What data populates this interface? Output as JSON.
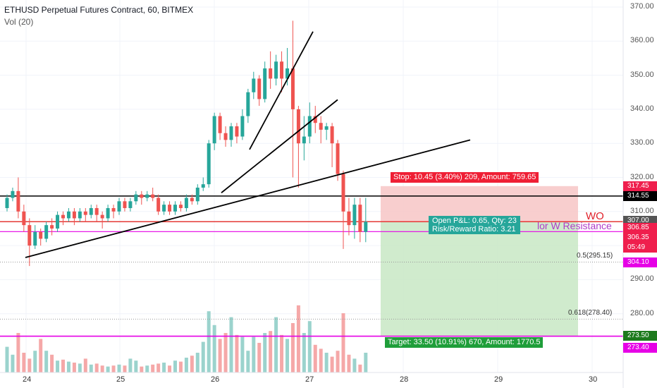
{
  "header": {
    "title": "ETHUSD Perpetual Futures Contract, 60, BITMEX",
    "indicator": "Vol (20)"
  },
  "price_axis": {
    "ticks": [
      "370.00",
      "360.00",
      "350.00",
      "340.00",
      "330.00",
      "320.00",
      "310.00",
      "300.00",
      "290.00",
      "280.00"
    ]
  },
  "time_axis": {
    "ticks": [
      "24",
      "25",
      "26",
      "27",
      "28",
      "29",
      "30"
    ]
  },
  "tags": [
    {
      "text": "317.45",
      "color": "#ef1f4d"
    },
    {
      "text": "314.55",
      "color": "#000000"
    },
    {
      "text": "307.00",
      "color": "#555555"
    },
    {
      "text": "306.85",
      "color": "#ef1f4d"
    },
    {
      "text": "306.35",
      "color": "#ef1f4d"
    },
    {
      "text": "05:49",
      "color": "#ef1f4d"
    },
    {
      "text": "304.10",
      "color": "#e600e6"
    },
    {
      "text": "273.50",
      "color": "#1d7a1d"
    },
    {
      "text": "273.40",
      "color": "#e600e6"
    }
  ],
  "position": {
    "stop": "Stop: 10.45 (3.40%) 209, Amount: 759.65",
    "pnl": "Open P&L: 0.65, Qty: 23",
    "rr": "Risk/Reward Ratio: 3.21",
    "target": "Target: 33.50 (10.91%) 670, Amount: 1770.5"
  },
  "annotations": {
    "wo": "WO",
    "resistance": "lor W Resistance",
    "fib05": "0.5(295.15)",
    "fib0618": "0.618(278.40)"
  },
  "chart_data": {
    "type": "candlestick",
    "symbol": "ETHUSD",
    "interval": "60",
    "x_ticks": [
      "24",
      "25",
      "26",
      "27",
      "28",
      "29",
      "30"
    ],
    "y_ticks": [
      370,
      360,
      350,
      340,
      330,
      320,
      310,
      300,
      290,
      280
    ],
    "ylim": [
      264.5,
      372.5
    ],
    "levels": {
      "horizontal_black": 314.55,
      "red_line": 307.0,
      "magenta_line": 304.1,
      "magenta_low": 273.4,
      "fib_0.5": 295.15,
      "fib_0.618": 278.4
    },
    "candles": [
      {
        "o": 311,
        "c": 314,
        "h": 315,
        "l": 310
      },
      {
        "o": 314,
        "c": 316,
        "h": 317,
        "l": 313
      },
      {
        "o": 316,
        "c": 310,
        "h": 320,
        "l": 308
      },
      {
        "o": 310,
        "c": 306,
        "h": 312,
        "l": 304
      },
      {
        "o": 306,
        "c": 300,
        "h": 308,
        "l": 294
      },
      {
        "o": 300,
        "c": 304,
        "h": 306,
        "l": 299
      },
      {
        "o": 304,
        "c": 302,
        "h": 305,
        "l": 300
      },
      {
        "o": 302,
        "c": 306,
        "h": 307,
        "l": 301
      },
      {
        "o": 306,
        "c": 305,
        "h": 308,
        "l": 303
      },
      {
        "o": 305,
        "c": 309,
        "h": 310,
        "l": 304
      },
      {
        "o": 309,
        "c": 308,
        "h": 310,
        "l": 306
      },
      {
        "o": 308,
        "c": 310,
        "h": 311,
        "l": 307
      },
      {
        "o": 310,
        "c": 308,
        "h": 311,
        "l": 306
      },
      {
        "o": 308,
        "c": 310,
        "h": 311,
        "l": 307
      },
      {
        "o": 310,
        "c": 309,
        "h": 311,
        "l": 307
      },
      {
        "o": 309,
        "c": 311,
        "h": 312,
        "l": 308
      },
      {
        "o": 311,
        "c": 309,
        "h": 312,
        "l": 307
      },
      {
        "o": 309,
        "c": 308,
        "h": 310,
        "l": 305
      },
      {
        "o": 308,
        "c": 311,
        "h": 312,
        "l": 307
      },
      {
        "o": 311,
        "c": 310,
        "h": 312,
        "l": 308
      },
      {
        "o": 310,
        "c": 313,
        "h": 314,
        "l": 309
      },
      {
        "o": 313,
        "c": 311,
        "h": 314,
        "l": 310
      },
      {
        "o": 311,
        "c": 313,
        "h": 314,
        "l": 310
      },
      {
        "o": 313,
        "c": 315,
        "h": 316,
        "l": 312
      },
      {
        "o": 315,
        "c": 314,
        "h": 316,
        "l": 312
      },
      {
        "o": 314,
        "c": 315,
        "h": 316,
        "l": 313
      },
      {
        "o": 315,
        "c": 314,
        "h": 317,
        "l": 313
      },
      {
        "o": 314,
        "c": 310,
        "h": 315,
        "l": 309
      },
      {
        "o": 310,
        "c": 312,
        "h": 313,
        "l": 309
      },
      {
        "o": 312,
        "c": 310,
        "h": 313,
        "l": 309
      },
      {
        "o": 310,
        "c": 312,
        "h": 313,
        "l": 309
      },
      {
        "o": 312,
        "c": 311,
        "h": 313,
        "l": 310
      },
      {
        "o": 311,
        "c": 314,
        "h": 315,
        "l": 310
      },
      {
        "o": 314,
        "c": 313,
        "h": 315,
        "l": 312
      },
      {
        "o": 313,
        "c": 317,
        "h": 318,
        "l": 312
      },
      {
        "o": 317,
        "c": 318,
        "h": 320,
        "l": 316
      },
      {
        "o": 318,
        "c": 330,
        "h": 331,
        "l": 317
      },
      {
        "o": 330,
        "c": 338,
        "h": 339,
        "l": 328
      },
      {
        "o": 338,
        "c": 333,
        "h": 339,
        "l": 331
      },
      {
        "o": 333,
        "c": 331,
        "h": 335,
        "l": 329
      },
      {
        "o": 331,
        "c": 335,
        "h": 336,
        "l": 329
      },
      {
        "o": 335,
        "c": 332,
        "h": 336,
        "l": 330
      },
      {
        "o": 332,
        "c": 338,
        "h": 340,
        "l": 331
      },
      {
        "o": 338,
        "c": 345,
        "h": 346,
        "l": 336
      },
      {
        "o": 345,
        "c": 349,
        "h": 351,
        "l": 343
      },
      {
        "o": 349,
        "c": 343,
        "h": 350,
        "l": 341
      },
      {
        "o": 343,
        "c": 352,
        "h": 354,
        "l": 342
      },
      {
        "o": 352,
        "c": 349,
        "h": 357,
        "l": 346
      },
      {
        "o": 349,
        "c": 354,
        "h": 356,
        "l": 347
      },
      {
        "o": 354,
        "c": 349,
        "h": 357,
        "l": 345
      },
      {
        "o": 349,
        "c": 352,
        "h": 358,
        "l": 347
      },
      {
        "o": 352,
        "c": 340,
        "h": 366,
        "l": 320
      },
      {
        "o": 340,
        "c": 330,
        "h": 341,
        "l": 317
      },
      {
        "o": 330,
        "c": 332,
        "h": 338,
        "l": 325
      },
      {
        "o": 332,
        "c": 338,
        "h": 342,
        "l": 330
      },
      {
        "o": 338,
        "c": 336,
        "h": 341,
        "l": 333
      },
      {
        "o": 336,
        "c": 334,
        "h": 338,
        "l": 330
      },
      {
        "o": 334,
        "c": 335,
        "h": 336,
        "l": 331
      },
      {
        "o": 335,
        "c": 330,
        "h": 336,
        "l": 323
      },
      {
        "o": 330,
        "c": 321,
        "h": 331,
        "l": 319
      },
      {
        "o": 321,
        "c": 310,
        "h": 322,
        "l": 299
      },
      {
        "o": 310,
        "c": 306,
        "h": 314,
        "l": 303
      },
      {
        "o": 306,
        "c": 312,
        "h": 314,
        "l": 302
      },
      {
        "o": 312,
        "c": 304,
        "h": 314,
        "l": 301
      },
      {
        "o": 304,
        "c": 307,
        "h": 314,
        "l": 301
      }
    ],
    "volumes": [
      26,
      18,
      40,
      20,
      14,
      22,
      34,
      22,
      18,
      12,
      13,
      11,
      10,
      9,
      14,
      8,
      9,
      7,
      6,
      7,
      8,
      7,
      14,
      12,
      6,
      7,
      8,
      9,
      10,
      7,
      12,
      11,
      15,
      17,
      20,
      31,
      62,
      48,
      34,
      40,
      56,
      38,
      36,
      22,
      36,
      30,
      40,
      42,
      56,
      38,
      34,
      50,
      68,
      40,
      52,
      28,
      24,
      20,
      16,
      22,
      60,
      18,
      14,
      8,
      20
    ]
  }
}
